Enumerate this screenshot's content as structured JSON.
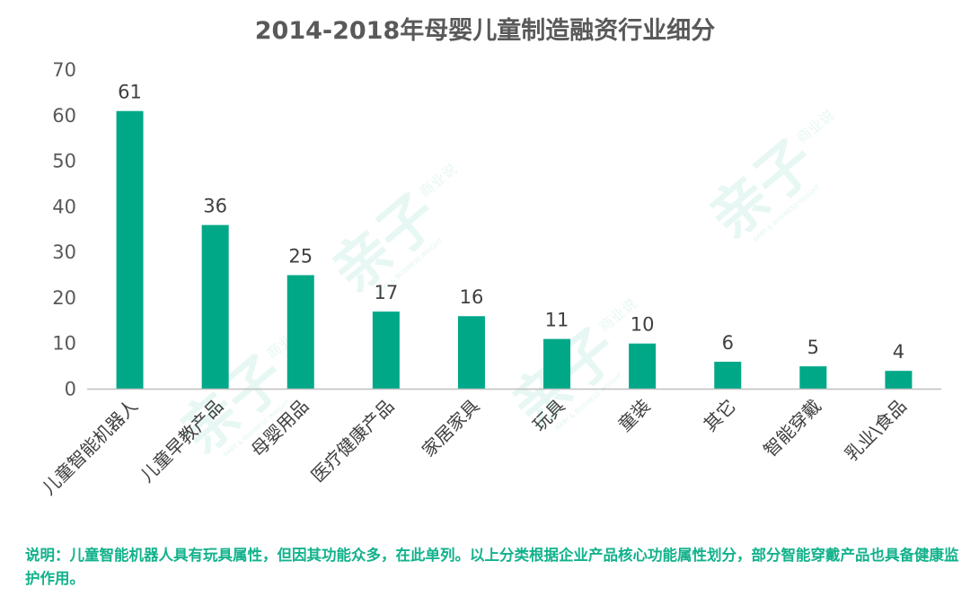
{
  "chart_data": {
    "type": "bar",
    "title": "2014-2018年母婴儿童制造融资行业细分",
    "categories": [
      "儿童智能机器人",
      "儿童早教产品",
      "母婴用品",
      "医疗健康产品",
      "家居家具",
      "玩具",
      "童装",
      "其它",
      "智能穿戴",
      "乳业\\食品"
    ],
    "values": [
      61,
      36,
      25,
      17,
      16,
      11,
      10,
      6,
      5,
      4
    ],
    "ylim": [
      0,
      70
    ],
    "yticks": [
      0,
      10,
      20,
      30,
      40,
      50,
      60,
      70
    ],
    "xlabel": "",
    "ylabel": "",
    "grid": false,
    "legend": "none",
    "bar_color": "#00a888",
    "axis_color": "#bfbfbf"
  },
  "note": "说明：儿童智能机器人具有玩具属性，但因其功能众多，在此单列。以上分类根据企业产品核心功能属性划分，部分智能穿戴产品也具备健康监护作用。",
  "watermark": {
    "main": "亲子",
    "sub": "商业说",
    "tiny": "BABY & BUSINESS INSIGHT"
  }
}
